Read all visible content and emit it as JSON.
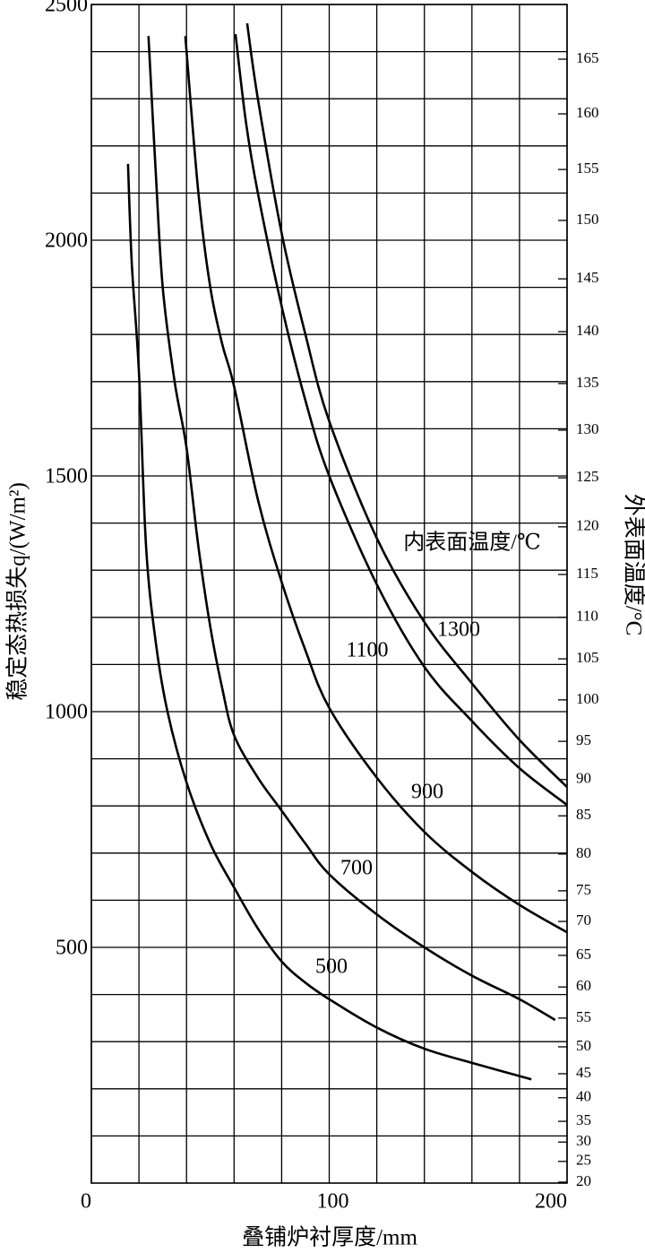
{
  "chart_data": {
    "type": "line",
    "xlabel": "叠铺炉衬厚度/mm",
    "ylabel": "稳定态热损失q/(W/m²)",
    "y2label": "外表面温度/°C",
    "annotation": "内表面温度/℃",
    "xlim": [
      0,
      200
    ],
    "xticks": [
      0,
      100,
      200
    ],
    "xminorticks": [
      20,
      40,
      60,
      80,
      120,
      140,
      160,
      180
    ],
    "ylim": [
      0,
      2500
    ],
    "yticks": [
      500,
      1000,
      1500,
      2000,
      2500
    ],
    "yminorticks": [
      100,
      200,
      300,
      400,
      600,
      700,
      800,
      900,
      1100,
      1200,
      1300,
      1400,
      1600,
      1700,
      1800,
      1900,
      2100,
      2200,
      2300,
      2400
    ],
    "y2ticks": [
      165,
      160,
      155,
      150,
      145,
      140,
      135,
      130,
      125,
      120,
      115,
      110,
      105,
      100,
      95,
      90,
      85,
      80,
      75,
      70,
      65,
      60,
      55,
      50,
      45,
      40,
      35,
      30,
      25,
      20
    ],
    "y2tick_positions": [
      2384,
      2268,
      2150,
      2042,
      1918,
      1806,
      1696,
      1597,
      1496,
      1392,
      1291,
      1200,
      1112,
      1025,
      937,
      856,
      779,
      698,
      620,
      555,
      483,
      416,
      350,
      289,
      232,
      181,
      131,
      87,
      46,
      2
    ],
    "grid": true,
    "series": [
      {
        "name": "500",
        "color": "#000000",
        "x": [
          15.4,
          17,
          20,
          23,
          27,
          32,
          40,
          50,
          60,
          70,
          80,
          90,
          100,
          120,
          140,
          160,
          185
        ],
        "values": [
          2162,
          1950,
          1720,
          1350,
          1150,
          1000,
          850,
          720,
          627,
          540,
          470,
          425,
          390,
          330,
          285,
          255,
          220
        ]
      },
      {
        "name": "700",
        "color": "#000000",
        "x": [
          24,
          27,
          30,
          35,
          40,
          45,
          50,
          55,
          60,
          70,
          80,
          90,
          100,
          120,
          140,
          160,
          180,
          195
        ],
        "values": [
          2433,
          2150,
          1900,
          1700,
          1560,
          1350,
          1180,
          1050,
          950,
          860,
          790,
          720,
          655,
          570,
          500,
          440,
          390,
          346
        ]
      },
      {
        "name": "900",
        "color": "#000000",
        "x": [
          39.5,
          45,
          50,
          55,
          60,
          70,
          80,
          90,
          100,
          120,
          140,
          160,
          180,
          200
        ],
        "values": [
          2433,
          2100,
          1900,
          1780,
          1690,
          1450,
          1275,
          1130,
          1008,
          860,
          745,
          660,
          590,
          532
        ]
      },
      {
        "name": "1100",
        "color": "#000000",
        "x": [
          60.6,
          65,
          70,
          80,
          90,
          100,
          120,
          140,
          160,
          180,
          200
        ],
        "values": [
          2437,
          2250,
          2100,
          1860,
          1660,
          1500,
          1270,
          1095,
          980,
          880,
          802
        ]
      },
      {
        "name": "1300",
        "color": "#000000",
        "x": [
          65.5,
          70,
          80,
          90,
          100,
          120,
          140,
          160,
          180,
          200
        ],
        "values": [
          2460,
          2300,
          2015,
          1800,
          1616,
          1368,
          1190,
          1060,
          940,
          840
        ]
      }
    ]
  }
}
